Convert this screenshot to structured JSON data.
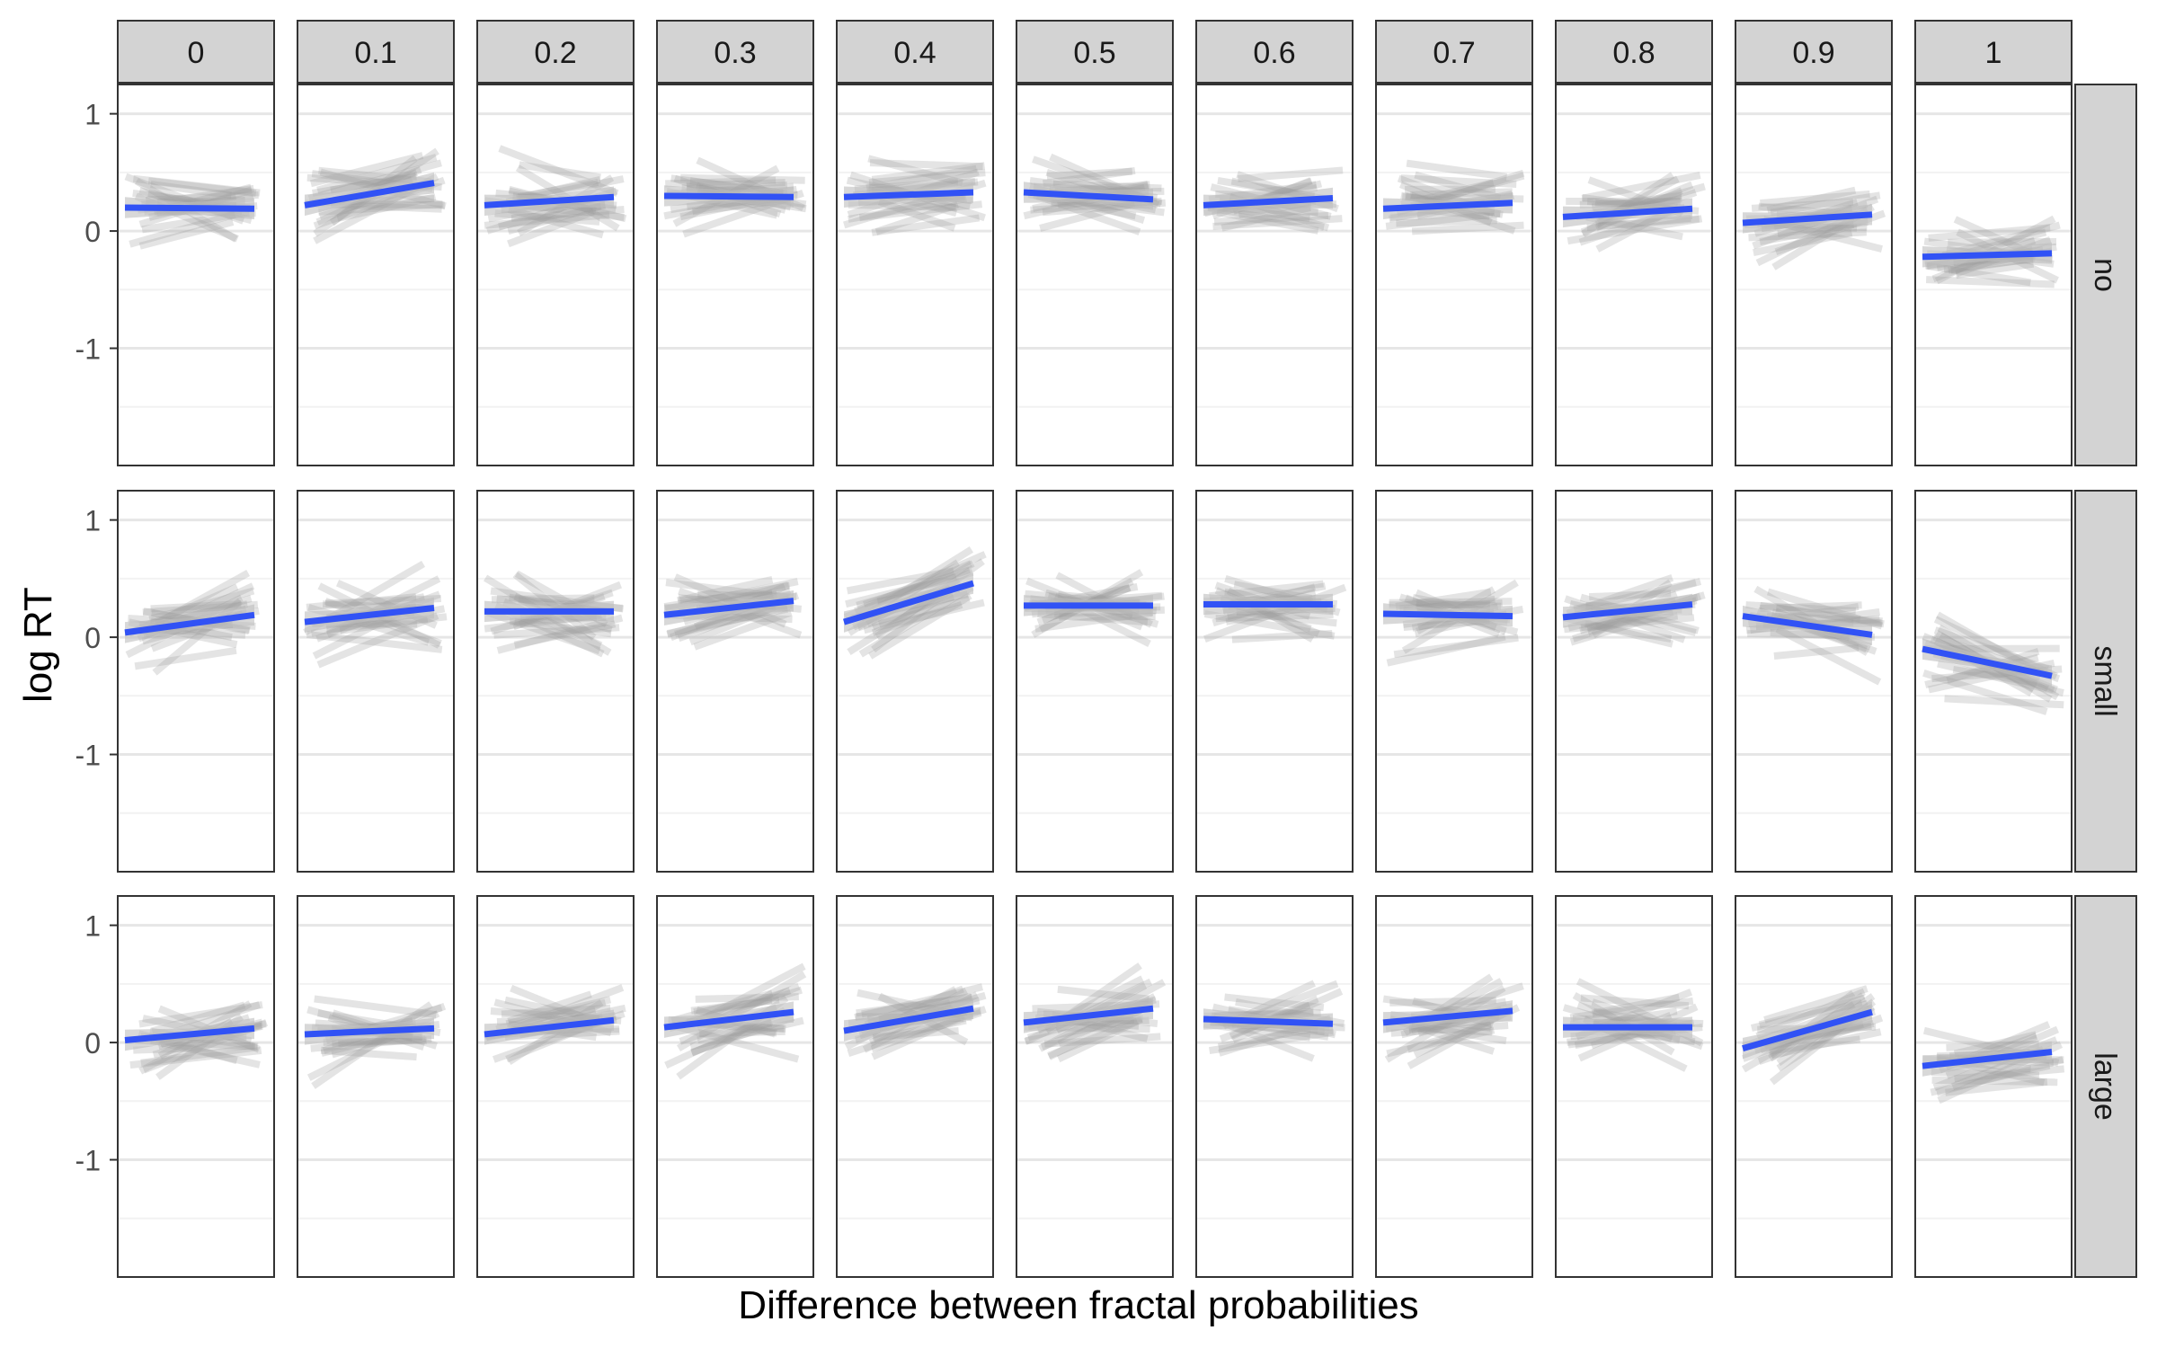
{
  "chart_data": {
    "type": "line",
    "xlabel": "Difference between fractal probabilities",
    "ylabel": "log RT",
    "ylim": [
      -2,
      1.25
    ],
    "y_ticks": [
      -1,
      0,
      1
    ],
    "grid": true,
    "facet_columns": [
      "0",
      "0.1",
      "0.2",
      "0.3",
      "0.4",
      "0.5",
      "0.6",
      "0.7",
      "0.8",
      "0.9",
      "1"
    ],
    "facet_rows": [
      "no",
      "small",
      "large"
    ],
    "series": [
      {
        "row": "no",
        "fit_start": [
          0.2,
          0.22,
          0.22,
          0.3,
          0.29,
          0.33,
          0.22,
          0.19,
          0.12,
          0.07,
          -0.22
        ],
        "fit_end": [
          0.19,
          0.41,
          0.29,
          0.29,
          0.33,
          0.27,
          0.28,
          0.24,
          0.19,
          0.14,
          -0.19
        ]
      },
      {
        "row": "small",
        "fit_start": [
          0.04,
          0.13,
          0.22,
          0.19,
          0.13,
          0.27,
          0.28,
          0.2,
          0.17,
          0.18,
          -0.1
        ],
        "fit_end": [
          0.19,
          0.25,
          0.22,
          0.31,
          0.46,
          0.27,
          0.28,
          0.18,
          0.28,
          0.02,
          -0.33
        ]
      },
      {
        "row": "large",
        "fit_start": [
          0.02,
          0.07,
          0.07,
          0.13,
          0.1,
          0.17,
          0.2,
          0.17,
          0.13,
          -0.05,
          -0.2
        ],
        "fit_end": [
          0.12,
          0.12,
          0.19,
          0.26,
          0.29,
          0.29,
          0.16,
          0.27,
          0.13,
          0.26,
          -0.08
        ]
      }
    ],
    "colors": {
      "fit_line": "#3152f5",
      "ribbon": "#bebebe",
      "subject_lines": "#9e9e9e",
      "strip_fill": "#d3d3d3",
      "strip_border": "#333333",
      "panel_border": "#333333",
      "grid_major": "#e6e6e6",
      "grid_minor": "#f2f2f2"
    }
  }
}
